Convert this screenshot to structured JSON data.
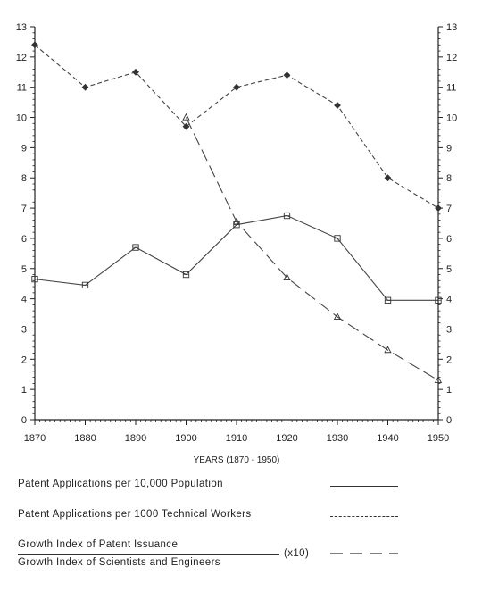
{
  "chart_data": {
    "type": "line",
    "xlabel": "YEARS (1870 - 1950)",
    "ylabel": "",
    "title": "",
    "x": [
      1870,
      1880,
      1890,
      1900,
      1910,
      1920,
      1930,
      1940,
      1950
    ],
    "xlim": [
      1870,
      1950
    ],
    "ylim": [
      0,
      13
    ],
    "yticks": [
      0,
      1,
      2,
      3,
      4,
      5,
      6,
      7,
      8,
      9,
      10,
      11,
      12,
      13
    ],
    "xticks": [
      1870,
      1880,
      1890,
      1900,
      1910,
      1920,
      1930,
      1940,
      1950
    ],
    "grid": false,
    "series": [
      {
        "name": "Patent Applications per 10,000 Population",
        "style": "solid",
        "marker": "square",
        "values": [
          4.65,
          4.45,
          5.7,
          4.8,
          6.45,
          6.75,
          6.0,
          3.95,
          3.95
        ]
      },
      {
        "name": "Patent Applications per 1000 Technical Workers",
        "style": "short-dash",
        "marker": "diamond",
        "values": [
          12.4,
          11.0,
          11.5,
          9.7,
          11.0,
          11.4,
          10.4,
          8.0,
          7.0
        ]
      },
      {
        "name": "Growth Index of Patent Issuance / Growth Index of Scientists and Engineers (x10)",
        "style": "long-dash",
        "marker": "triangle",
        "values": [
          null,
          null,
          null,
          10.0,
          6.55,
          4.7,
          3.4,
          2.3,
          1.3
        ]
      }
    ]
  },
  "legend": {
    "item1": "Patent Applications per 10,000 Population",
    "item2": "Patent Applications per 1000 Technical Workers",
    "item3_numerator": "Growth Index of Patent Issuance",
    "item3_denominator": "Growth Index of Scientists and Engineers",
    "item3_multiplier": "(x10)"
  },
  "colors": {
    "ink": "#222222",
    "background": "#ffffff"
  }
}
